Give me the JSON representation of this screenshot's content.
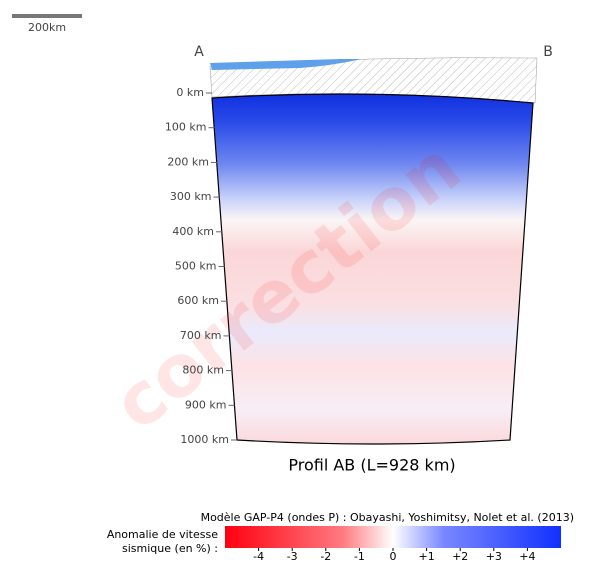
{
  "chart_data": {
    "type": "cross-section",
    "title": "Profil AB (L=928 km)",
    "start_label": "A",
    "end_label": "B",
    "scale_bar": "200km",
    "watermark": "correction",
    "ylim": [
      0,
      1000
    ],
    "yticks": [
      {
        "value": 0,
        "label": "0 km"
      },
      {
        "value": 100,
        "label": "100 km"
      },
      {
        "value": 200,
        "label": "200 km"
      },
      {
        "value": 300,
        "label": "300 km"
      },
      {
        "value": 400,
        "label": "400 km"
      },
      {
        "value": 500,
        "label": "500 km"
      },
      {
        "value": 600,
        "label": "600 km"
      },
      {
        "value": 700,
        "label": "700 km"
      },
      {
        "value": 800,
        "label": "800 km"
      },
      {
        "value": 900,
        "label": "900 km"
      },
      {
        "value": 1000,
        "label": "1000 km"
      }
    ],
    "model_credit": "Modèle GAP-P4 (ondes P) : Obayashi, Yoshimitsy, Nolet et al. (2013)",
    "colorbar": {
      "label_line1": "Anomalie de vitesse",
      "label_line2": "sismique (en %) :",
      "clim": [
        -5,
        5
      ],
      "ticks": [
        -4,
        -3,
        -2,
        -1,
        0,
        {
          "value": 1,
          "label": "+1"
        },
        {
          "value": 2,
          "label": "+2"
        },
        {
          "value": 3,
          "label": "+3"
        },
        {
          "value": 4,
          "label": "+4"
        }
      ]
    }
  }
}
